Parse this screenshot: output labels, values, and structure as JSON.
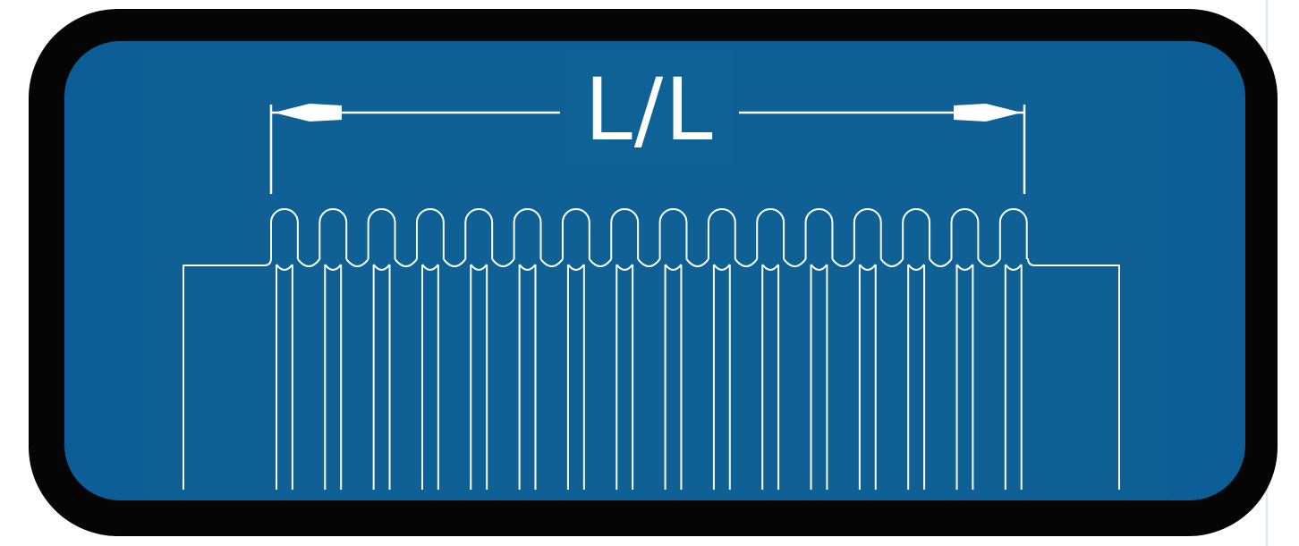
{
  "diagram": {
    "dimension_label": "L/L",
    "convolution_count": 16,
    "colors": {
      "page_background": "#ffffff",
      "border_stripe": "#dce8f0",
      "frame": "#050505",
      "panel_outer": "#0d5d97",
      "panel_inner": "#0f6295",
      "line": "#ffffff"
    },
    "icons": {
      "left_arrow": "arrowhead-left-icon",
      "right_arrow": "arrowhead-right-icon"
    }
  }
}
